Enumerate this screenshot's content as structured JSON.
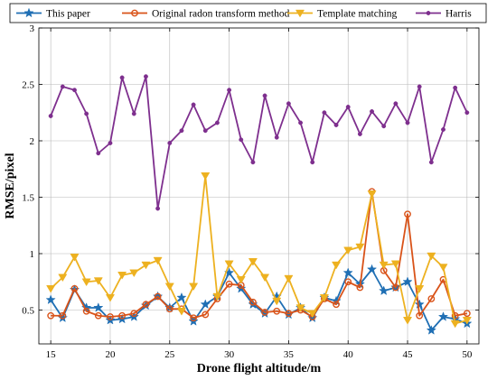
{
  "chart_data": {
    "type": "line",
    "xlabel": "Drone flight altitude/m",
    "ylabel": "RMSE/pixel",
    "xlim": [
      14,
      51
    ],
    "ylim": [
      0.2,
      3.0
    ],
    "xticks": [
      15,
      20,
      25,
      30,
      35,
      40,
      45,
      50
    ],
    "yticks": [
      0.5,
      1,
      1.5,
      2,
      2.5,
      3
    ],
    "ytick_labels": [
      "0.5",
      "1",
      "1.5",
      "2",
      "2.5",
      "3"
    ],
    "grid": true,
    "legend_position": "top",
    "x": [
      15,
      16,
      17,
      18,
      19,
      20,
      21,
      22,
      23,
      24,
      25,
      26,
      27,
      28,
      29,
      30,
      31,
      32,
      33,
      34,
      35,
      36,
      37,
      38,
      39,
      40,
      41,
      42,
      43,
      44,
      45,
      46,
      47,
      48,
      49,
      50
    ],
    "series": [
      {
        "name": "This paper",
        "color": "#1f6fb4",
        "marker": "star",
        "values": [
          0.59,
          0.43,
          0.68,
          0.52,
          0.52,
          0.41,
          0.42,
          0.44,
          0.54,
          0.62,
          0.52,
          0.61,
          0.4,
          0.55,
          0.62,
          0.83,
          0.69,
          0.55,
          0.47,
          0.62,
          0.46,
          0.52,
          0.43,
          0.61,
          0.58,
          0.83,
          0.73,
          0.86,
          0.67,
          0.7,
          0.75,
          0.55,
          0.32,
          0.44,
          0.42,
          0.38
        ]
      },
      {
        "name": "Original radon transform method",
        "color": "#d95319",
        "marker": "circle",
        "values": [
          0.45,
          0.45,
          0.69,
          0.49,
          0.45,
          0.44,
          0.45,
          0.47,
          0.55,
          0.62,
          0.51,
          0.51,
          0.43,
          0.46,
          0.6,
          0.73,
          0.72,
          0.57,
          0.48,
          0.49,
          0.47,
          0.5,
          0.44,
          0.6,
          0.55,
          0.75,
          0.7,
          1.55,
          0.85,
          0.7,
          1.35,
          0.45,
          0.6,
          0.77,
          0.45,
          0.47
        ]
      },
      {
        "name": "Template matching",
        "color": "#edb120",
        "marker": "triangle-down",
        "values": [
          0.69,
          0.79,
          0.97,
          0.75,
          0.76,
          0.61,
          0.81,
          0.83,
          0.9,
          0.94,
          0.71,
          0.49,
          0.71,
          1.69,
          0.62,
          0.91,
          0.77,
          0.93,
          0.79,
          0.58,
          0.78,
          0.52,
          0.47,
          0.61,
          0.9,
          1.03,
          1.06,
          1.53,
          0.9,
          0.91,
          0.41,
          0.69,
          0.98,
          0.88,
          0.38,
          0.41
        ]
      },
      {
        "name": "Harris",
        "color": "#7e2f8e",
        "marker": "dot",
        "values": [
          2.22,
          2.48,
          2.45,
          2.24,
          1.89,
          1.98,
          2.56,
          2.24,
          2.57,
          1.4,
          1.98,
          2.09,
          2.32,
          2.09,
          2.16,
          2.45,
          2.01,
          1.81,
          2.4,
          2.03,
          2.33,
          2.16,
          1.81,
          2.25,
          2.14,
          2.3,
          2.06,
          2.26,
          2.13,
          2.33,
          2.16,
          2.48,
          1.81,
          2.1,
          2.47,
          2.25
        ]
      }
    ]
  }
}
